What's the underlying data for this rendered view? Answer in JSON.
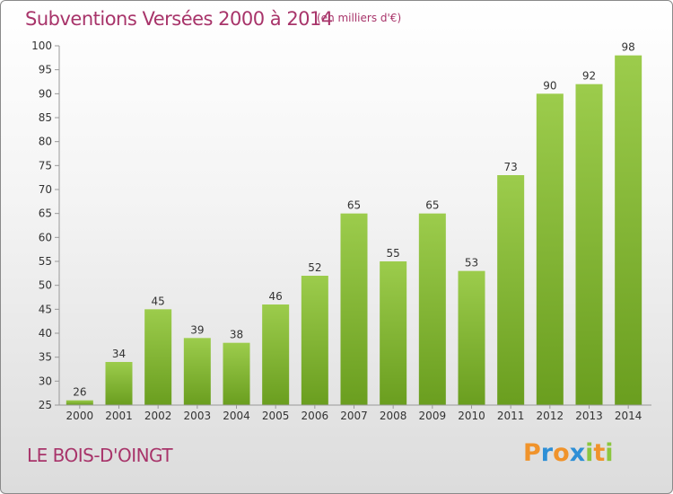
{
  "header": {
    "title": "Subventions Versées 2000 à 2014",
    "unit": "(en milliers d'€)"
  },
  "footer": {
    "commune": "LE BOIS-D'OINGT",
    "logo_letters": [
      "P",
      "r",
      "o",
      "x",
      "i",
      "t",
      "i"
    ],
    "logo_colors": [
      "#f0932b",
      "#2e8fd6",
      "#f0932b",
      "#2e8fd6",
      "#8cc63f",
      "#f0932b",
      "#8cc63f"
    ]
  },
  "chart_data": {
    "type": "bar",
    "title": "Subventions Versées 2000 à 2014",
    "subtitle": "(en milliers d'€)",
    "categories": [
      "2000",
      "2001",
      "2002",
      "2003",
      "2004",
      "2005",
      "2006",
      "2007",
      "2008",
      "2009",
      "2010",
      "2011",
      "2012",
      "2013",
      "2014"
    ],
    "values": [
      26,
      34,
      45,
      39,
      38,
      46,
      52,
      65,
      55,
      65,
      53,
      73,
      90,
      92,
      98
    ],
    "ylim": [
      25,
      100
    ],
    "yticks": [
      25,
      30,
      35,
      40,
      45,
      50,
      55,
      60,
      65,
      70,
      75,
      80,
      85,
      90,
      95,
      100
    ],
    "grid": false,
    "bar_color_top": "#9ccc4c",
    "bar_color_bottom": "#6a9e1f"
  }
}
